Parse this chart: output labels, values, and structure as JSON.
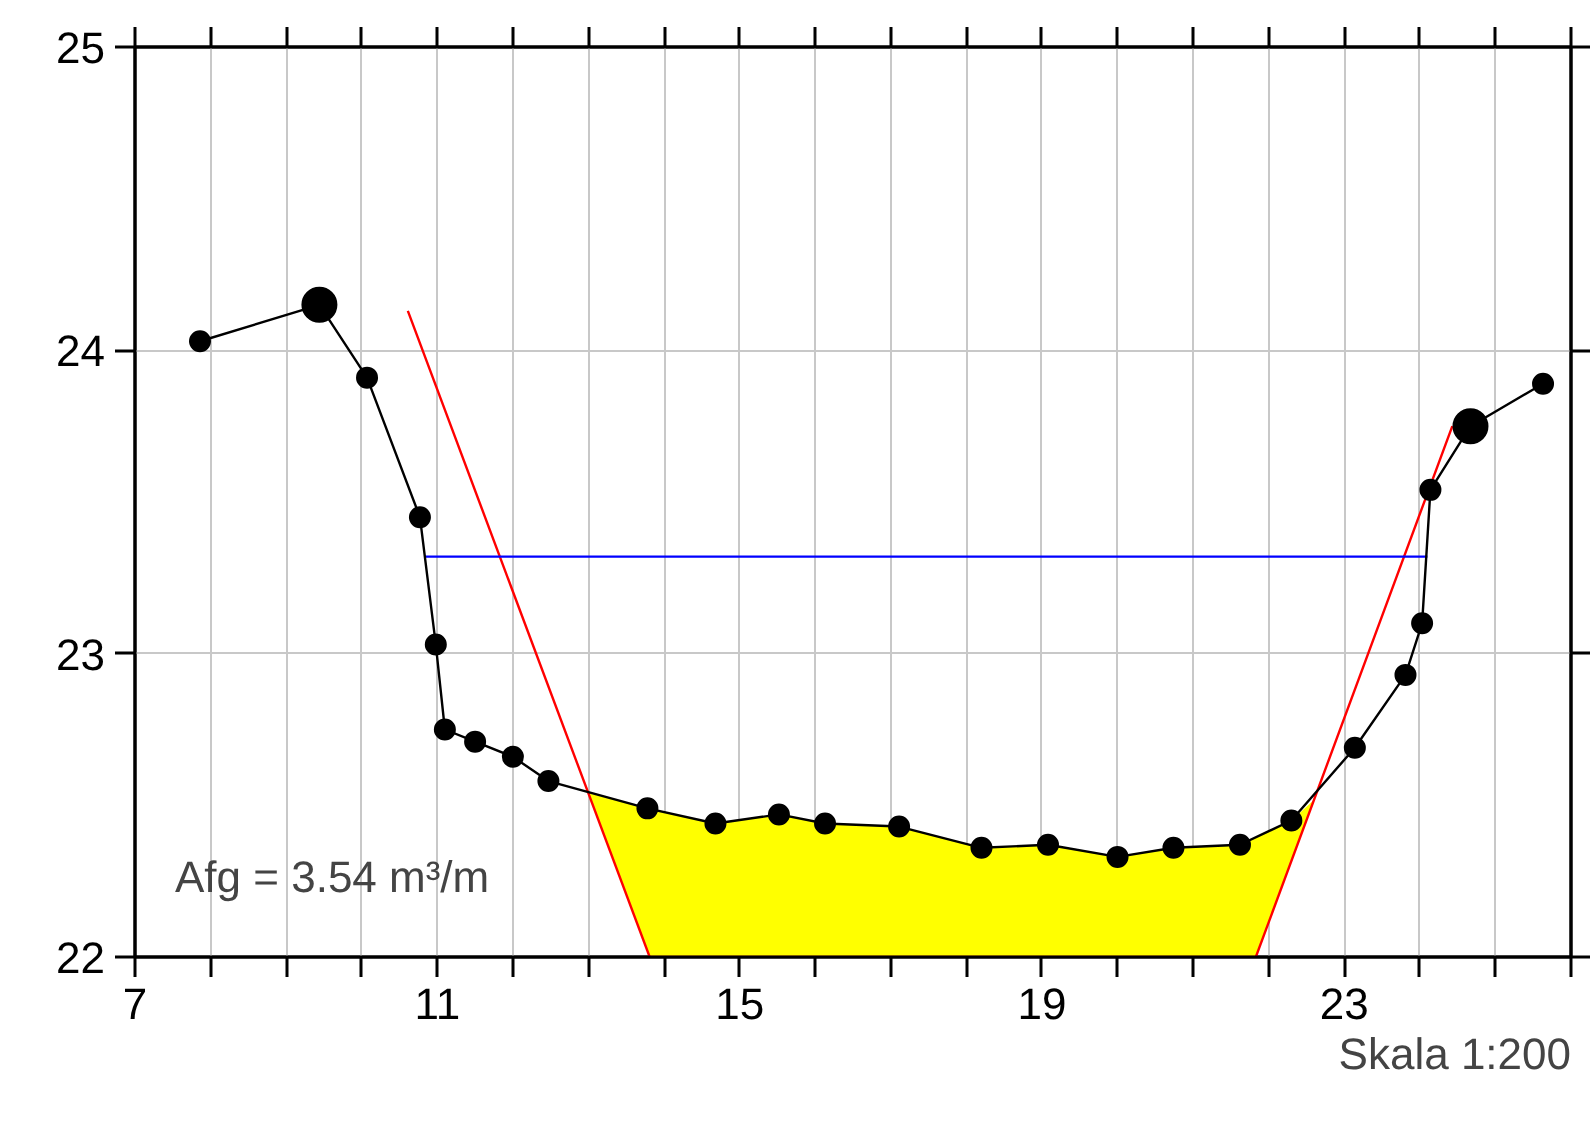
{
  "chart_data": {
    "type": "line",
    "xlim": [
      7,
      26
    ],
    "ylim": [
      22,
      25
    ],
    "xticks": [
      7,
      {
        "value": 8,
        "label": null
      },
      {
        "value": 9,
        "label": null
      },
      {
        "value": 10,
        "label": null
      },
      11,
      {
        "value": 12,
        "label": null
      },
      {
        "value": 13,
        "label": null
      },
      {
        "value": 14,
        "label": null
      },
      15,
      {
        "value": 16,
        "label": null
      },
      {
        "value": 17,
        "label": null
      },
      {
        "value": 18,
        "label": null
      },
      19,
      {
        "value": 20,
        "label": null
      },
      {
        "value": 21,
        "label": null
      },
      {
        "value": 22,
        "label": null
      },
      23,
      {
        "value": 24,
        "label": null
      },
      {
        "value": 25,
        "label": null
      },
      {
        "value": 26,
        "label": null
      }
    ],
    "yticks": [
      22,
      23,
      24,
      25
    ],
    "grid": true,
    "line_style": "solid",
    "series": [
      {
        "type": "area",
        "color": "#ffff00",
        "x": [
          13.0,
          13.78,
          14.68,
          15.52,
          16.13,
          17.11,
          18.2,
          19.08,
          20.0,
          20.74,
          21.62,
          22.3,
          22.61,
          21.83,
          13.81
        ],
        "values": [
          22.54,
          22.49,
          22.44,
          22.47,
          22.44,
          22.43,
          22.36,
          22.37,
          22.33,
          22.36,
          22.37,
          22.45,
          22.52,
          22.0,
          22.0
        ]
      },
      {
        "type": "line",
        "color": "#ff0000",
        "marker": "none",
        "x": [
          10.61,
          13.81,
          21.83,
          24.43
        ],
        "values": [
          24.13,
          22.0,
          22.0,
          23.75
        ]
      },
      {
        "type": "line",
        "color": "#0000ff",
        "marker": "none",
        "x": [
          10.84,
          24.1
        ],
        "values": [
          23.32,
          23.32
        ]
      },
      {
        "color": "#000000",
        "marker": "circle",
        "x": [
          7.86,
          9.44,
          10.07,
          10.77,
          10.98,
          11.1,
          11.5,
          12.0,
          12.47,
          13.78,
          14.68,
          15.52,
          16.13,
          17.11,
          18.2,
          19.08,
          20.0,
          20.74,
          21.62,
          22.3,
          23.14,
          23.81,
          24.03,
          24.14,
          24.67,
          25.63
        ],
        "values": [
          24.03,
          24.15,
          23.91,
          23.45,
          23.03,
          22.75,
          22.71,
          22.66,
          22.58,
          22.49,
          22.44,
          22.47,
          22.44,
          22.43,
          22.36,
          22.37,
          22.33,
          22.36,
          22.37,
          22.45,
          22.69,
          22.93,
          23.1,
          23.54,
          23.75,
          23.89
        ]
      },
      {
        "type": "scatter",
        "marker": "circle",
        "color": "#000000",
        "x": [
          9.44,
          24.67
        ],
        "values": [
          24.15,
          23.75
        ]
      }
    ],
    "annotations": [
      "Afg = 3.54 m³/m",
      "Skala 1:200"
    ]
  }
}
